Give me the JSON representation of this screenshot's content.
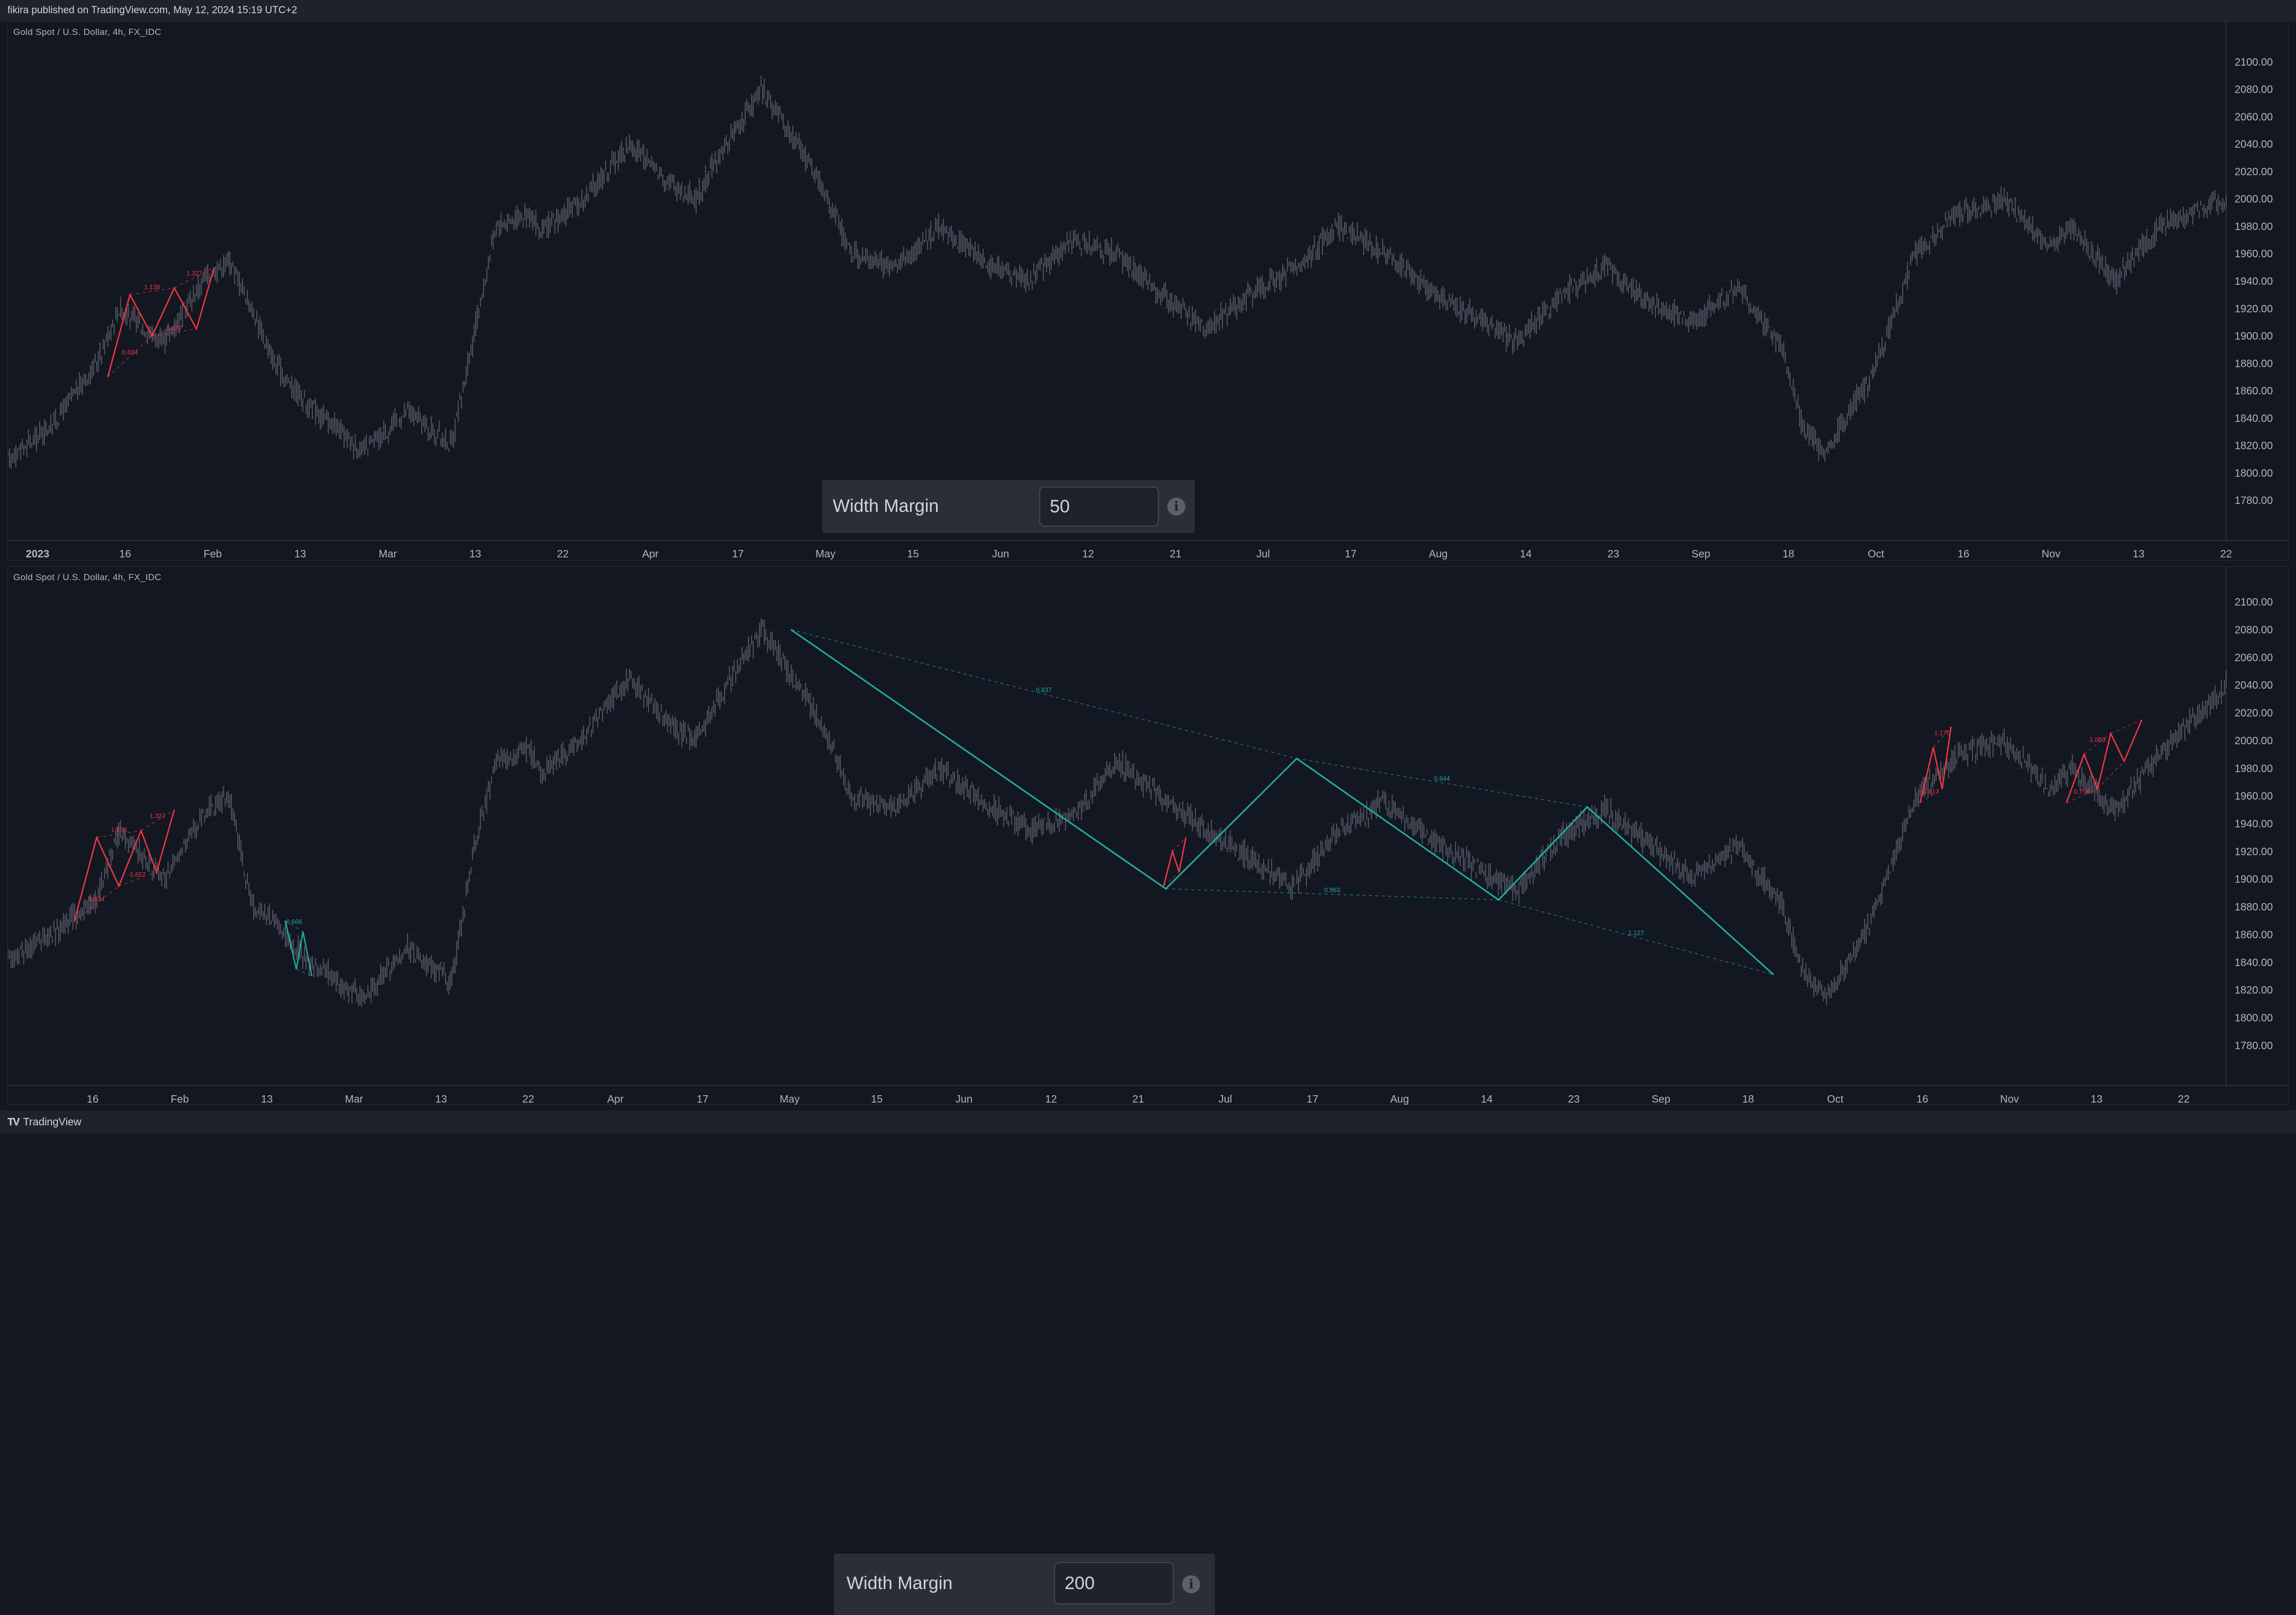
{
  "header": {
    "text": "fikira published on TradingView.com, May 12, 2024 15:19 UTC+2"
  },
  "footer": {
    "logo_text": "TradingView",
    "logo_mark": "TV"
  },
  "colors": {
    "background": "#131722",
    "candle": "#5d606b",
    "bull_zigzag": "#f23645",
    "bear_zigzag": "#22ab94",
    "grid": "#1c2030"
  },
  "panels": [
    {
      "symbol": "Gold Spot / U.S. Dollar, 4h, FX_IDC",
      "width_margin": {
        "label": "Width Margin",
        "value": "50"
      },
      "x_ticks": [
        {
          "label": "2023",
          "bold": true
        },
        {
          "label": "16"
        },
        {
          "label": "Feb"
        },
        {
          "label": "13"
        },
        {
          "label": "Mar"
        },
        {
          "label": "13"
        },
        {
          "label": "22"
        },
        {
          "label": "Apr"
        },
        {
          "label": "17"
        },
        {
          "label": "May"
        },
        {
          "label": "15"
        },
        {
          "label": "Jun"
        },
        {
          "label": "12"
        },
        {
          "label": "21"
        },
        {
          "label": "Jul"
        },
        {
          "label": "17"
        },
        {
          "label": "Aug"
        },
        {
          "label": "14"
        },
        {
          "label": "23"
        },
        {
          "label": "Sep"
        },
        {
          "label": "18"
        },
        {
          "label": "Oct"
        },
        {
          "label": "16"
        },
        {
          "label": "Nov"
        },
        {
          "label": "13"
        },
        {
          "label": "22"
        }
      ],
      "y_ticks": [
        "2100.00",
        "2080.00",
        "2060.00",
        "2040.00",
        "2020.00",
        "2000.00",
        "1980.00",
        "1960.00",
        "1940.00",
        "1920.00",
        "1900.00",
        "1880.00",
        "1860.00",
        "1840.00",
        "1820.00",
        "1800.00",
        "1780.00"
      ]
    },
    {
      "symbol": "Gold Spot / U.S. Dollar, 4h, FX_IDC",
      "width_margin": {
        "label": "Width Margin",
        "value": "200"
      },
      "x_ticks": [
        {
          "label": "16"
        },
        {
          "label": "Feb"
        },
        {
          "label": "13"
        },
        {
          "label": "Mar"
        },
        {
          "label": "13"
        },
        {
          "label": "22"
        },
        {
          "label": "Apr"
        },
        {
          "label": "17"
        },
        {
          "label": "May"
        },
        {
          "label": "15"
        },
        {
          "label": "Jun"
        },
        {
          "label": "12"
        },
        {
          "label": "21"
        },
        {
          "label": "Jul"
        },
        {
          "label": "17"
        },
        {
          "label": "Aug"
        },
        {
          "label": "14"
        },
        {
          "label": "23"
        },
        {
          "label": "Sep"
        },
        {
          "label": "18"
        },
        {
          "label": "Oct"
        },
        {
          "label": "16"
        },
        {
          "label": "Nov"
        },
        {
          "label": "13"
        },
        {
          "label": "22"
        }
      ],
      "y_ticks": [
        "2100.00",
        "2080.00",
        "2060.00",
        "2040.00",
        "2020.00",
        "2000.00",
        "1980.00",
        "1960.00",
        "1940.00",
        "1920.00",
        "1900.00",
        "1880.00",
        "1860.00",
        "1840.00",
        "1820.00",
        "1800.00",
        "1780.00"
      ]
    }
  ],
  "chart_data": [
    {
      "type": "line",
      "title": "Gold Spot / U.S. Dollar, 4h, FX_IDC",
      "ylim": [
        1770,
        2110
      ],
      "x": [
        0,
        0.02,
        0.04,
        0.05,
        0.07,
        0.09,
        0.1,
        0.11,
        0.12,
        0.135,
        0.15,
        0.16,
        0.18,
        0.2,
        0.21,
        0.22,
        0.235,
        0.24,
        0.26,
        0.28,
        0.3,
        0.31,
        0.32,
        0.34,
        0.36,
        0.37,
        0.38,
        0.4,
        0.42,
        0.44,
        0.46,
        0.48,
        0.5,
        0.52,
        0.54,
        0.56,
        0.58,
        0.6,
        0.62,
        0.64,
        0.66,
        0.68,
        0.7,
        0.72,
        0.74,
        0.76,
        0.78,
        0.8,
        0.81,
        0.82,
        0.83,
        0.84,
        0.86,
        0.88,
        0.9,
        0.92,
        0.93,
        0.95,
        0.97,
        1.0
      ],
      "series": [
        {
          "values": [
            1810,
            1835,
            1880,
            1920,
            1895,
            1945,
            1955,
            1920,
            1880,
            1850,
            1830,
            1815,
            1845,
            1820,
            1900,
            1980,
            1990,
            1975,
            2000,
            2040,
            2010,
            2000,
            2030,
            2080,
            2030,
            2000,
            1960,
            1950,
            1980,
            1955,
            1940,
            1970,
            1960,
            1930,
            1905,
            1930,
            1950,
            1980,
            1960,
            1935,
            1915,
            1895,
            1930,
            1950,
            1925,
            1910,
            1935,
            1890,
            1830,
            1815,
            1845,
            1870,
            1960,
            1990,
            2000,
            1965,
            1980,
            1940,
            1980,
            2000
          ]
        }
      ],
      "zigzags": [
        {
          "color": "bull",
          "points": [
            [
              0.045,
              1870
            ],
            [
              0.055,
              1930
            ],
            [
              0.065,
              1900
            ],
            [
              0.075,
              1935
            ],
            [
              0.085,
              1905
            ],
            [
              0.093,
              1950
            ]
          ],
          "labels": [
            "0.634",
            "1.138",
            "0.657",
            "1.327"
          ]
        }
      ]
    },
    {
      "type": "line",
      "title": "Gold Spot / U.S. Dollar, 4h, FX_IDC",
      "ylim": [
        1770,
        2110
      ],
      "x": [
        0,
        0.02,
        0.04,
        0.05,
        0.07,
        0.09,
        0.1,
        0.11,
        0.12,
        0.135,
        0.15,
        0.16,
        0.18,
        0.2,
        0.21,
        0.22,
        0.235,
        0.24,
        0.26,
        0.28,
        0.3,
        0.31,
        0.32,
        0.34,
        0.36,
        0.37,
        0.38,
        0.4,
        0.42,
        0.44,
        0.46,
        0.48,
        0.5,
        0.52,
        0.54,
        0.56,
        0.58,
        0.6,
        0.62,
        0.64,
        0.66,
        0.68,
        0.7,
        0.72,
        0.74,
        0.76,
        0.78,
        0.8,
        0.81,
        0.82,
        0.83,
        0.84,
        0.86,
        0.88,
        0.9,
        0.92,
        0.93,
        0.95,
        0.97,
        1.0
      ],
      "series": [
        {
          "values": [
            1840,
            1860,
            1885,
            1935,
            1900,
            1950,
            1960,
            1880,
            1870,
            1840,
            1825,
            1815,
            1850,
            1825,
            1920,
            1985,
            1995,
            1975,
            2005,
            2045,
            2010,
            2000,
            2030,
            2080,
            2030,
            2000,
            1960,
            1950,
            1980,
            1955,
            1935,
            1945,
            1985,
            1960,
            1935,
            1915,
            1895,
            1935,
            1955,
            1930,
            1910,
            1890,
            1930,
            1950,
            1925,
            1900,
            1925,
            1880,
            1830,
            1815,
            1840,
            1870,
            1960,
            1990,
            2000,
            1965,
            1980,
            1950,
            1990,
            2040
          ]
        }
      ],
      "zigzags": [
        {
          "color": "bull",
          "points": [
            [
              0.03,
              1870
            ],
            [
              0.04,
              1930
            ],
            [
              0.05,
              1895
            ],
            [
              0.06,
              1935
            ],
            [
              0.067,
              1905
            ],
            [
              0.075,
              1950
            ]
          ],
          "labels": [
            "0.634",
            "1.138",
            "0.657",
            "1.327"
          ]
        },
        {
          "color": "bear",
          "points": [
            [
              0.125,
              1870
            ],
            [
              0.13,
              1835
            ],
            [
              0.133,
              1862
            ],
            [
              0.137,
              1830
            ]
          ],
          "labels": [
            "0.666"
          ]
        },
        {
          "color": "bear",
          "points": [
            [
              0.353,
              2080
            ],
            [
              0.522,
              1893
            ],
            [
              0.581,
              1987
            ],
            [
              0.672,
              1885
            ],
            [
              0.712,
              1952
            ],
            [
              0.796,
              1831
            ]
          ],
          "labels": [
            "0.837",
            "0.963",
            "0.844",
            "1.127"
          ]
        },
        {
          "color": "bull",
          "points": [
            [
              0.521,
              1895
            ],
            [
              0.525,
              1920
            ],
            [
              0.528,
              1905
            ],
            [
              0.531,
              1930
            ]
          ],
          "labels": []
        },
        {
          "color": "bull",
          "points": [
            [
              0.862,
              1955
            ],
            [
              0.868,
              1995
            ],
            [
              0.872,
              1965
            ],
            [
              0.876,
              2010
            ]
          ],
          "labels": [
            "0.817",
            "1.175"
          ]
        },
        {
          "color": "bull",
          "points": [
            [
              0.928,
              1955
            ],
            [
              0.936,
              1990
            ],
            [
              0.942,
              1965
            ],
            [
              0.948,
              2005
            ],
            [
              0.954,
              1985
            ],
            [
              0.962,
              2015
            ]
          ],
          "labels": [
            "0.758",
            "1.069"
          ]
        }
      ]
    }
  ]
}
